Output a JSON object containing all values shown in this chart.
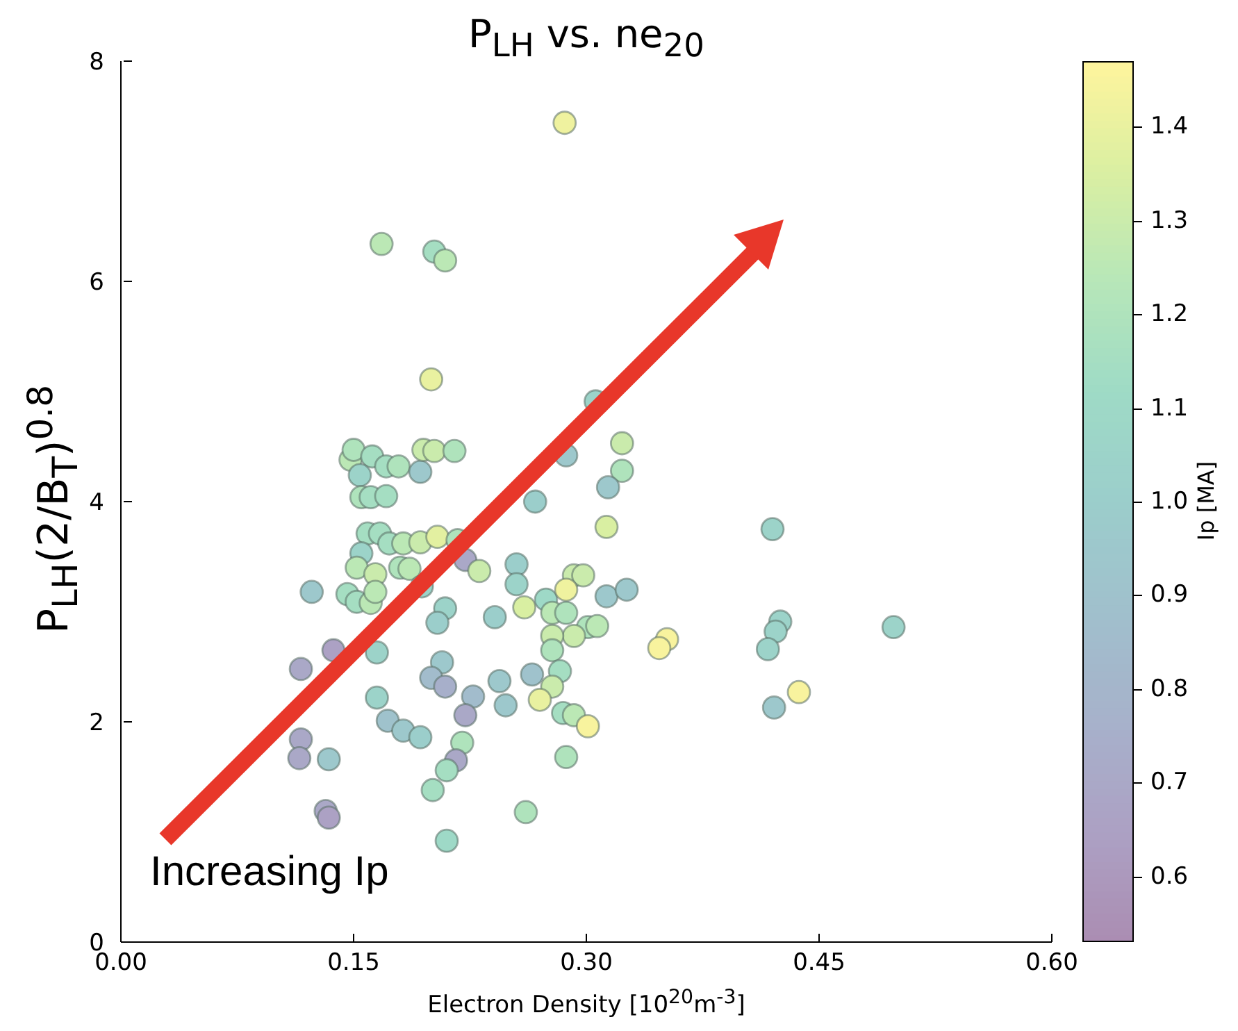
{
  "chart_data": {
    "type": "scatter",
    "title": "P$_{LH}$ vs. ne$_{20}$",
    "xlabel": "Electron Density [10$^{20}$m$^{-3}$]",
    "ylabel": "P$_{LH}$(2/B$_{T}$)$^{0.8}$",
    "clabel": "Ip [MA]",
    "annotations": [
      "Increasing Ip"
    ],
    "xlim": [
      0,
      0.6
    ],
    "xticks": [
      {
        "value": 0,
        "label": "0.00"
      },
      {
        "value": 0.15,
        "label": "0.15"
      },
      {
        "value": 0.3,
        "label": "0.30"
      },
      {
        "value": 0.45,
        "label": "0.45"
      },
      {
        "value": 0.6,
        "label": "0.60"
      }
    ],
    "ylim": [
      0,
      8
    ],
    "yticks": [
      0,
      2,
      4,
      6,
      8
    ],
    "clim": [
      0.53,
      1.47
    ],
    "cticks": [
      0.6,
      0.7,
      0.8,
      0.9,
      {
        "value": 1,
        "label": "1.0"
      },
      1.1,
      1.2,
      1.3,
      1.4
    ],
    "marker": "circle",
    "x": [
      0.168,
      0.202,
      0.209,
      0.2,
      0.148,
      0.15,
      0.162,
      0.171,
      0.179,
      0.154,
      0.193,
      0.195,
      0.202,
      0.215,
      0.155,
      0.161,
      0.171,
      0.159,
      0.167,
      0.173,
      0.155,
      0.182,
      0.193,
      0.204,
      0.217,
      0.222,
      0.152,
      0.164,
      0.18,
      0.186,
      0.194,
      0.146,
      0.152,
      0.161,
      0.164,
      0.123,
      0.137,
      0.165,
      0.116,
      0.231,
      0.209,
      0.204,
      0.323,
      0.314,
      0.313,
      0.255,
      0.255,
      0.26,
      0.241,
      0.274,
      0.278,
      0.287,
      0.292,
      0.298,
      0.287,
      0.301,
      0.307,
      0.292,
      0.278,
      0.278,
      0.283,
      0.278,
      0.27,
      0.285,
      0.292,
      0.301,
      0.287,
      0.313,
      0.326,
      0.207,
      0.2,
      0.209,
      0.227,
      0.222,
      0.244,
      0.248,
      0.265,
      0.165,
      0.172,
      0.182,
      0.193,
      0.22,
      0.216,
      0.21,
      0.201,
      0.261,
      0.21,
      0.134,
      0.132,
      0.116,
      0.115,
      0.134,
      0.286,
      0.306,
      0.287,
      0.323,
      0.42,
      0.352,
      0.347,
      0.425,
      0.422,
      0.417,
      0.498,
      0.421,
      0.437,
      0.267
    ],
    "values": [
      6.34,
      6.27,
      6.19,
      5.11,
      4.38,
      4.47,
      4.41,
      4.32,
      4.32,
      4.24,
      4.27,
      4.47,
      4.46,
      4.46,
      4.04,
      4.04,
      4.05,
      3.71,
      3.71,
      3.62,
      3.53,
      3.62,
      3.63,
      3.68,
      3.65,
      3.47,
      3.4,
      3.34,
      3.4,
      3.39,
      3.23,
      3.16,
      3.09,
      3.08,
      3.18,
      3.18,
      2.65,
      2.63,
      2.48,
      3.37,
      3.03,
      2.9,
      4.28,
      4.13,
      3.77,
      3.43,
      3.25,
      3.04,
      2.95,
      3.11,
      2.99,
      2.99,
      3.33,
      3.33,
      3.2,
      2.86,
      2.87,
      2.78,
      2.78,
      2.65,
      2.46,
      2.32,
      2.2,
      2.08,
      2.06,
      1.96,
      1.68,
      3.14,
      3.2,
      2.54,
      2.4,
      2.32,
      2.23,
      2.06,
      2.37,
      2.15,
      2.43,
      2.22,
      2.01,
      1.92,
      1.86,
      1.81,
      1.65,
      1.56,
      1.38,
      1.18,
      0.92,
      1.66,
      1.19,
      1.84,
      1.67,
      1.13,
      7.44,
      4.91,
      4.42,
      4.53,
      3.75,
      2.75,
      2.67,
      2.91,
      2.82,
      2.66,
      2.86,
      2.13,
      2.27,
      4.0
    ],
    "cvalues": [
      1.25,
      1.15,
      1.25,
      1.4,
      1.25,
      1.2,
      1.15,
      1.15,
      1.2,
      1.05,
      0.95,
      1.3,
      1.3,
      1.2,
      1.2,
      1.15,
      1.15,
      1.15,
      1.15,
      1.15,
      1.05,
      1.25,
      1.3,
      1.38,
      1.2,
      0.7,
      1.25,
      1.3,
      1.2,
      1.25,
      1.05,
      1.15,
      1.15,
      1.25,
      1.25,
      0.95,
      0.65,
      1.05,
      0.7,
      1.3,
      1.05,
      1.0,
      1.2,
      0.95,
      1.35,
      1.0,
      1.05,
      1.35,
      1.0,
      1.1,
      1.25,
      1.2,
      1.3,
      1.3,
      1.42,
      1.2,
      1.25,
      1.3,
      1.3,
      1.2,
      1.15,
      1.3,
      1.4,
      1.15,
      1.25,
      1.45,
      1.2,
      0.95,
      0.95,
      0.95,
      0.85,
      0.75,
      0.85,
      0.7,
      0.95,
      0.95,
      0.9,
      1.05,
      0.9,
      0.95,
      1.0,
      1.2,
      0.7,
      1.15,
      1.15,
      1.2,
      1.1,
      0.95,
      0.7,
      0.7,
      0.7,
      0.65,
      1.42,
      1.05,
      0.95,
      1.3,
      1.05,
      1.45,
      1.45,
      1.05,
      1.05,
      1.05,
      1.05,
      0.95,
      1.45,
      1.0
    ]
  }
}
